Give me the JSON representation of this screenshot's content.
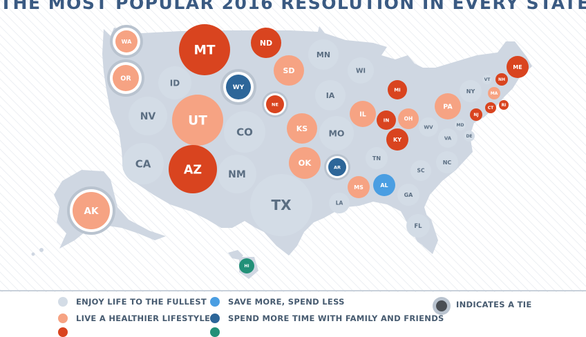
{
  "title": "THE MOST POPULAR 2016 RESOLUTION IN EVERY STATE",
  "colors": {
    "background": "#ffffff",
    "land": "#cbd4e0",
    "hatch": "#dfe4ea",
    "enjoy_life": "#d3dce6",
    "healthier": "#f6a383",
    "save_more": "#4a9ee2",
    "family": "#2d6699",
    "strong_red": "#d9441f",
    "green": "#229078",
    "tie_ring": "#b9c3cf"
  },
  "legend": {
    "enjoy_life": "ENJOY LIFE TO THE FULLEST",
    "healthier": "LIVE A HEALTHIER LIFESTYLE",
    "save_more": "SAVE MORE, SPEND LESS",
    "family": "SPEND MORE TIME WITH FAMILY AND FRIENDS",
    "tie": "INDICATES A TIE"
  },
  "states": [
    {
      "abbr": "WA",
      "cat": "healthier",
      "tie": true
    },
    {
      "abbr": "OR",
      "cat": "healthier",
      "tie": true
    },
    {
      "abbr": "CA",
      "cat": "enjoy_life"
    },
    {
      "abbr": "NV",
      "cat": "enjoy_life"
    },
    {
      "abbr": "ID",
      "cat": "enjoy_life"
    },
    {
      "abbr": "MT",
      "cat": "strong_red"
    },
    {
      "abbr": "WY",
      "cat": "family",
      "tie": true
    },
    {
      "abbr": "UT",
      "cat": "healthier"
    },
    {
      "abbr": "AZ",
      "cat": "strong_red"
    },
    {
      "abbr": "CO",
      "cat": "enjoy_life"
    },
    {
      "abbr": "NM",
      "cat": "enjoy_life"
    },
    {
      "abbr": "ND",
      "cat": "strong_red"
    },
    {
      "abbr": "SD",
      "cat": "healthier"
    },
    {
      "abbr": "NE",
      "cat": "strong_red",
      "tie": true
    },
    {
      "abbr": "KS",
      "cat": "healthier"
    },
    {
      "abbr": "OK",
      "cat": "healthier"
    },
    {
      "abbr": "TX",
      "cat": "enjoy_life"
    },
    {
      "abbr": "MN",
      "cat": "enjoy_life"
    },
    {
      "abbr": "IA",
      "cat": "enjoy_life"
    },
    {
      "abbr": "MO",
      "cat": "enjoy_life"
    },
    {
      "abbr": "AR",
      "cat": "family",
      "tie": true
    },
    {
      "abbr": "LA",
      "cat": "enjoy_life"
    },
    {
      "abbr": "WI",
      "cat": "enjoy_life"
    },
    {
      "abbr": "IL",
      "cat": "healthier"
    },
    {
      "abbr": "MS",
      "cat": "healthier"
    },
    {
      "abbr": "MI",
      "cat": "strong_red"
    },
    {
      "abbr": "IN",
      "cat": "strong_red"
    },
    {
      "abbr": "OH",
      "cat": "healthier"
    },
    {
      "abbr": "KY",
      "cat": "strong_red"
    },
    {
      "abbr": "TN",
      "cat": "enjoy_life"
    },
    {
      "abbr": "AL",
      "cat": "save_more"
    },
    {
      "abbr": "GA",
      "cat": "enjoy_life"
    },
    {
      "abbr": "FL",
      "cat": "enjoy_life"
    },
    {
      "abbr": "SC",
      "cat": "enjoy_life"
    },
    {
      "abbr": "NC",
      "cat": "enjoy_life"
    },
    {
      "abbr": "VA",
      "cat": "enjoy_life"
    },
    {
      "abbr": "WV",
      "cat": "enjoy_life"
    },
    {
      "abbr": "PA",
      "cat": "healthier"
    },
    {
      "abbr": "NY",
      "cat": "enjoy_life"
    },
    {
      "abbr": "MD",
      "cat": "enjoy_life"
    },
    {
      "abbr": "DE",
      "cat": "enjoy_life"
    },
    {
      "abbr": "NJ",
      "cat": "strong_red"
    },
    {
      "abbr": "CT",
      "cat": "strong_red"
    },
    {
      "abbr": "RI",
      "cat": "strong_red"
    },
    {
      "abbr": "MA",
      "cat": "healthier"
    },
    {
      "abbr": "VT",
      "cat": "enjoy_life"
    },
    {
      "abbr": "NH",
      "cat": "strong_red"
    },
    {
      "abbr": "ME",
      "cat": "strong_red"
    },
    {
      "abbr": "AK",
      "cat": "healthier",
      "tie": true
    },
    {
      "abbr": "HI",
      "cat": "green"
    }
  ]
}
